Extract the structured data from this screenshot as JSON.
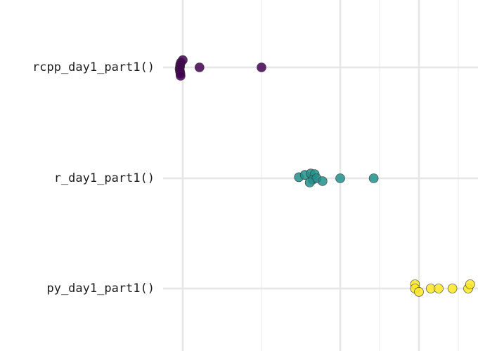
{
  "chart_data": {
    "type": "scatter",
    "title": "",
    "xlabel": "",
    "ylabel": "",
    "grid": true,
    "legend": "none",
    "categories": [
      "rcpp_day1_part1()",
      "r_day1_part1()",
      "py_day1_part1()"
    ],
    "series": [
      {
        "category": "rcpp_day1_part1()",
        "color": "#440154",
        "points": [
          {
            "x": 1.0,
            "y": 0.26
          },
          {
            "x": 0.91,
            "y": 0.18
          },
          {
            "x": 0.87,
            "y": 0.1
          },
          {
            "x": 0.86,
            "y": 0.02
          },
          {
            "x": 0.84,
            "y": -0.06
          },
          {
            "x": 0.86,
            "y": -0.14
          },
          {
            "x": 0.88,
            "y": -0.22
          },
          {
            "x": 0.89,
            "y": -0.3
          },
          {
            "x": 1.85,
            "y": 0.0
          },
          {
            "x": 5.0,
            "y": 0.0
          }
        ]
      },
      {
        "category": "r_day1_part1()",
        "color": "#21908C",
        "points": [
          {
            "x": 6.9,
            "y": 0.04
          },
          {
            "x": 7.2,
            "y": 0.12
          },
          {
            "x": 7.5,
            "y": 0.17
          },
          {
            "x": 7.7,
            "y": 0.15
          },
          {
            "x": 7.6,
            "y": -0.05
          },
          {
            "x": 7.8,
            "y": 0.0
          },
          {
            "x": 7.45,
            "y": -0.15
          },
          {
            "x": 8.1,
            "y": -0.1
          },
          {
            "x": 9.0,
            "y": 0.0
          },
          {
            "x": 10.7,
            "y": 0.0
          }
        ]
      },
      {
        "category": "py_day1_part1()",
        "color": "#FDE725",
        "points": [
          {
            "x": 12.8,
            "y": 0.15
          },
          {
            "x": 12.8,
            "y": 0.0
          },
          {
            "x": 13.0,
            "y": -0.12
          },
          {
            "x": 13.6,
            "y": 0.0
          },
          {
            "x": 14.0,
            "y": 0.0
          },
          {
            "x": 14.7,
            "y": 0.0
          },
          {
            "x": 15.5,
            "y": 0.0
          },
          {
            "x": 15.6,
            "y": 0.15
          }
        ]
      }
    ],
    "xlim": [
      0,
      16
    ],
    "x_major_grid": [
      1,
      9,
      13
    ],
    "x_minor_grid": [
      5,
      11,
      15
    ]
  }
}
